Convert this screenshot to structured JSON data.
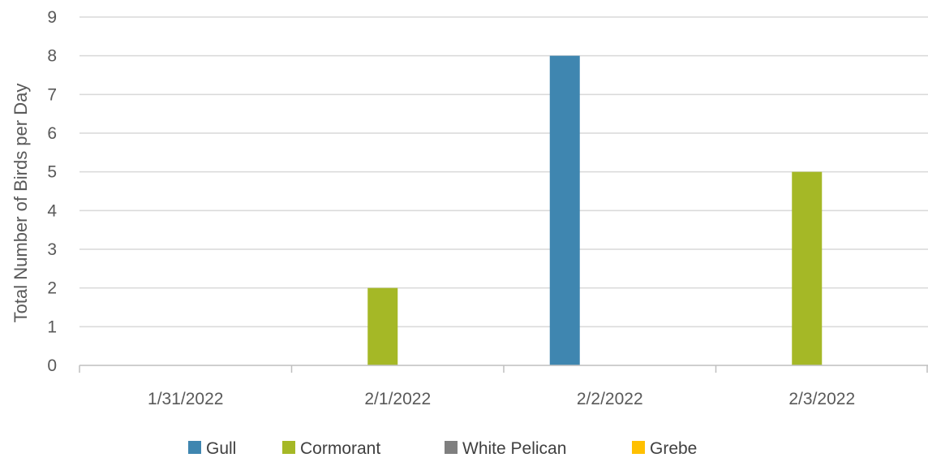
{
  "chart_data": {
    "type": "bar",
    "title": "",
    "xlabel": "",
    "ylabel": "Total Number of Birds per Day",
    "ylim": [
      0,
      9
    ],
    "yticks": [
      0,
      1,
      2,
      3,
      4,
      5,
      6,
      7,
      8,
      9
    ],
    "grid": true,
    "legend_position": "bottom",
    "categories": [
      "1/31/2022",
      "2/1/2022",
      "2/2/2022",
      "2/3/2022"
    ],
    "series": [
      {
        "name": "Gull",
        "color": "#3F86B0",
        "values": [
          0,
          0,
          8,
          0
        ]
      },
      {
        "name": "Cormorant",
        "color": "#A5B826",
        "values": [
          0,
          2,
          0,
          5
        ]
      },
      {
        "name": "White Pelican",
        "color": "#7F7F7F",
        "values": [
          0,
          0,
          0,
          0
        ]
      },
      {
        "name": "Grebe",
        "color": "#FFC000",
        "values": [
          0,
          0,
          0,
          0
        ]
      }
    ]
  }
}
